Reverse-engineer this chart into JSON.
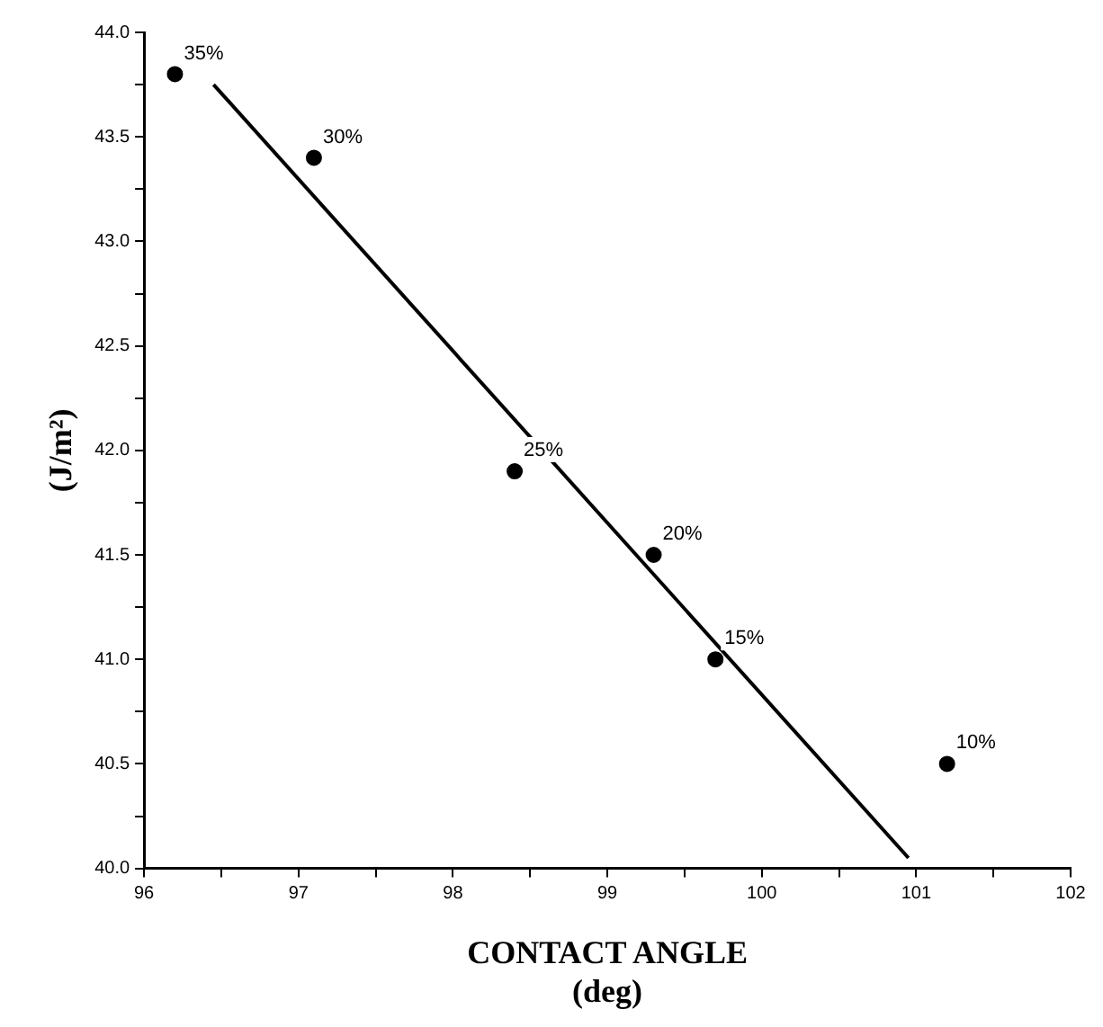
{
  "chart_data": {
    "type": "scatter",
    "xlabel": "CONTACT ANGLE\n(deg)",
    "ylabel": "(J/m²)",
    "x": [
      96.2,
      97.1,
      98.4,
      99.3,
      99.7,
      101.2
    ],
    "series": [
      {
        "color": "#000000",
        "values": [
          43.8,
          43.4,
          41.9,
          41.5,
          41.0,
          40.5
        ]
      },
      {
        "type": "line",
        "color": "#000000",
        "marker": "none",
        "x": [
          96.45,
          100.95
        ],
        "values": [
          43.75,
          40.05
        ]
      }
    ],
    "marker": "circle",
    "legend": false,
    "grid": false,
    "xlim": [
      96,
      102
    ],
    "xticks": [
      96,
      {
        "value": 96.5,
        "label": null
      },
      97,
      {
        "value": 97.5,
        "label": null
      },
      98,
      {
        "value": 98.5,
        "label": null
      },
      99,
      {
        "value": 99.5,
        "label": null
      },
      100,
      {
        "value": 100.5,
        "label": null
      },
      101,
      {
        "value": 101.5,
        "label": null
      },
      102
    ],
    "ylim": [
      40,
      44
    ],
    "yticks": [
      {
        "value": 40,
        "label": "40.0"
      },
      {
        "value": 40.25,
        "label": null
      },
      {
        "value": 40.5,
        "label": "40.5"
      },
      {
        "value": 40.75,
        "label": null
      },
      {
        "value": 41,
        "label": "41.0"
      },
      {
        "value": 41.25,
        "label": null
      },
      {
        "value": 41.5,
        "label": "41.5"
      },
      {
        "value": 41.75,
        "label": null
      },
      {
        "value": 42,
        "label": "42.0"
      },
      {
        "value": 42.25,
        "label": null
      },
      {
        "value": 42.5,
        "label": "42.5"
      },
      {
        "value": 42.75,
        "label": null
      },
      {
        "value": 43,
        "label": "43.0"
      },
      {
        "value": 43.25,
        "label": null
      },
      {
        "value": 43.5,
        "label": "43.5"
      },
      {
        "value": 43.75,
        "label": null
      },
      {
        "value": 44,
        "label": "44.0"
      }
    ],
    "annotations": [
      {
        "text": "35%",
        "x": 96.2,
        "y": 43.8
      },
      {
        "text": "30%",
        "x": 97.1,
        "y": 43.4
      },
      {
        "text": "25%",
        "x": 98.4,
        "y": 41.9
      },
      {
        "text": "20%",
        "x": 99.3,
        "y": 41.5
      },
      {
        "text": "15%",
        "x": 99.7,
        "y": 41.0
      },
      {
        "text": "10%",
        "x": 101.2,
        "y": 40.5
      }
    ]
  }
}
